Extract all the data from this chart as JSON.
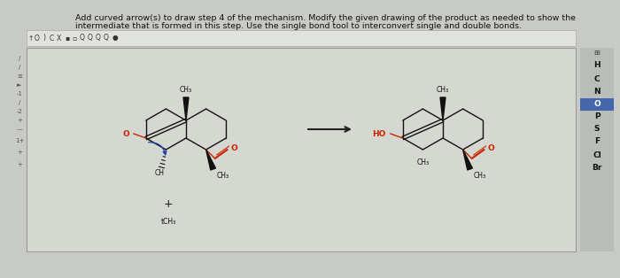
{
  "bg_color": "#c8cbc5",
  "canvas_bg": "#d4d8d0",
  "title_text1": "Add curved arrow(s) to draw step 4 of the mechanism. Modify the given drawing of the product as needed to show the",
  "title_text2": "intermediate that is formed in this step. Use the single bond tool to interconvert single and double bonds.",
  "title_fontsize": 6.8,
  "title_color": "#111111",
  "sidebar_elements": [
    "H",
    "C",
    "N",
    "O",
    "P",
    "S",
    "F",
    "Cl",
    "Br"
  ],
  "sidebar_highlight": 3,
  "mol_color": "#111111",
  "red_color": "#cc2200",
  "ho_color": "#cc2200"
}
